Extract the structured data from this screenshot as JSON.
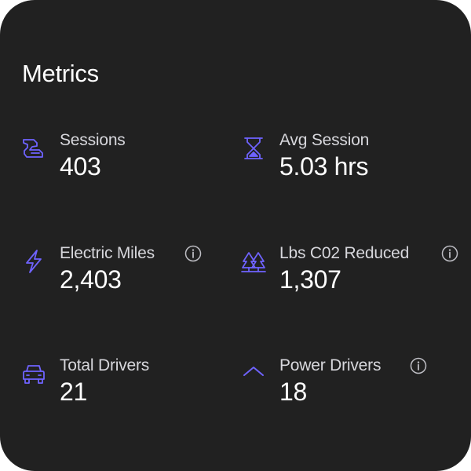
{
  "card": {
    "title": "Metrics",
    "accent_color": "#6f63ff",
    "background_color": "#212121"
  },
  "metrics": [
    {
      "label": "Sessions",
      "value": "403",
      "icon": "charger-plug-icon",
      "info": false
    },
    {
      "label": "Avg Session",
      "value": "5.03 hrs",
      "icon": "hourglass-icon",
      "info": false
    },
    {
      "label": "Electric Miles",
      "value": "2,403",
      "icon": "lightning-bolt-icon",
      "info": true
    },
    {
      "label": "Lbs C02 Reduced",
      "value": "1,307",
      "icon": "trees-icon",
      "info": true
    },
    {
      "label": "Total Drivers",
      "value": "21",
      "icon": "car-icon",
      "info": false
    },
    {
      "label": "Power Drivers",
      "value": "18",
      "icon": "chevron-up-icon",
      "info": true
    }
  ]
}
